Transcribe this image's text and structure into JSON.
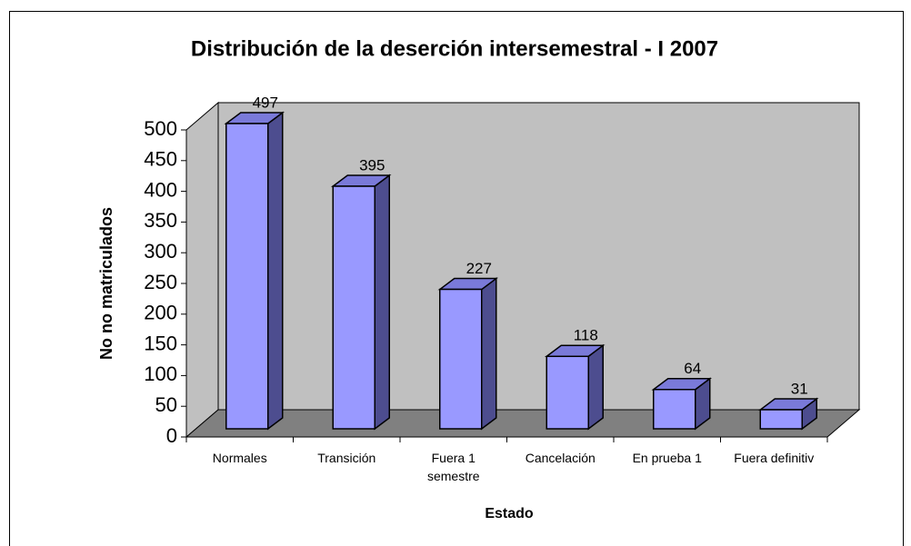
{
  "chart_data": {
    "type": "bar",
    "title": "Distribución de la deserción intersemestral - I 2007",
    "x_label": "Estado",
    "y_label": "No no matriculados",
    "categories": [
      "Normales",
      "Transición",
      "Fuera 1\nsemestre",
      "Cancelación",
      "En prueba 1",
      "Fuera definitiv"
    ],
    "values": [
      497,
      395,
      227,
      118,
      64,
      31
    ],
    "color": "#9999ff",
    "ylim": [
      0,
      500
    ],
    "yticks": [
      0,
      50,
      100,
      150,
      200,
      250,
      300,
      350,
      400,
      450,
      500
    ]
  }
}
